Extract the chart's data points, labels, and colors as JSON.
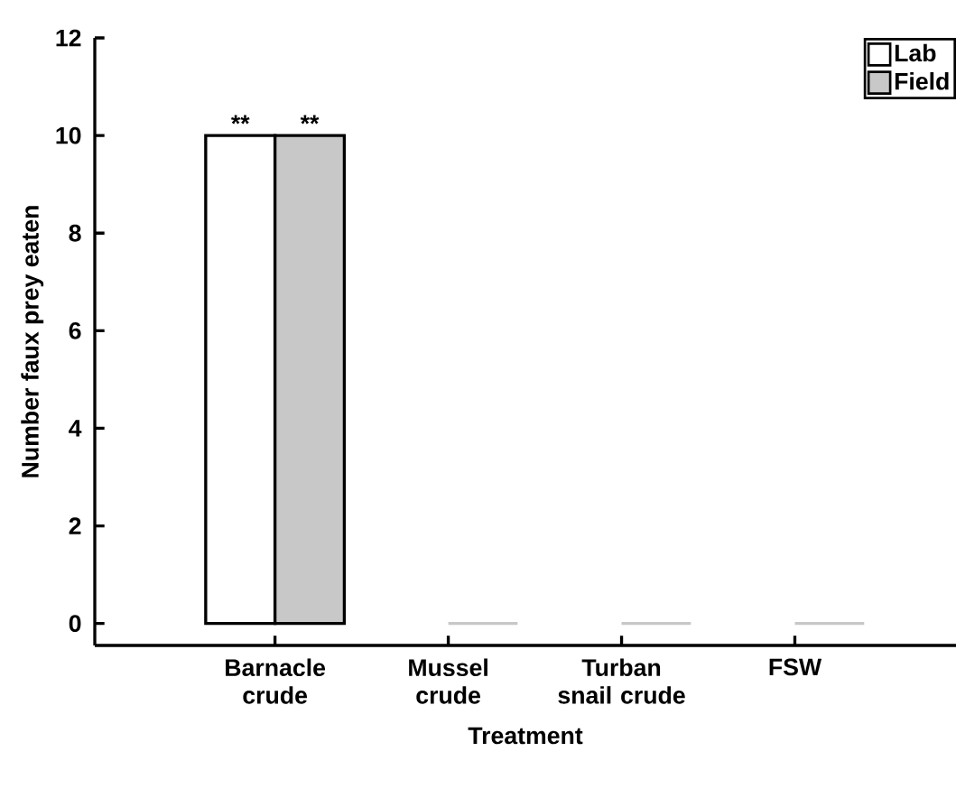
{
  "chart_data": {
    "type": "bar",
    "xlabel": "Treatment",
    "ylabel": "Number faux prey eaten",
    "categories": [
      "Barnacle crude",
      "Mussel crude",
      "Turban snail crude",
      "FSW"
    ],
    "series": [
      {
        "name": "Lab",
        "color": "#ffffff",
        "values": [
          10,
          0,
          0,
          0
        ]
      },
      {
        "name": "Field",
        "color": "#c8c8c8",
        "values": [
          10,
          0,
          0,
          0
        ]
      }
    ],
    "ylim": [
      -0.45,
      12
    ],
    "yticks": [
      0,
      2,
      4,
      6,
      8,
      10,
      12
    ],
    "annotations": [
      {
        "text": "**",
        "x": "Barnacle crude",
        "y": 10
      },
      {
        "text": "**",
        "x": "Barnacle crude",
        "y": 10
      }
    ],
    "legend": "top right",
    "grid": false
  }
}
